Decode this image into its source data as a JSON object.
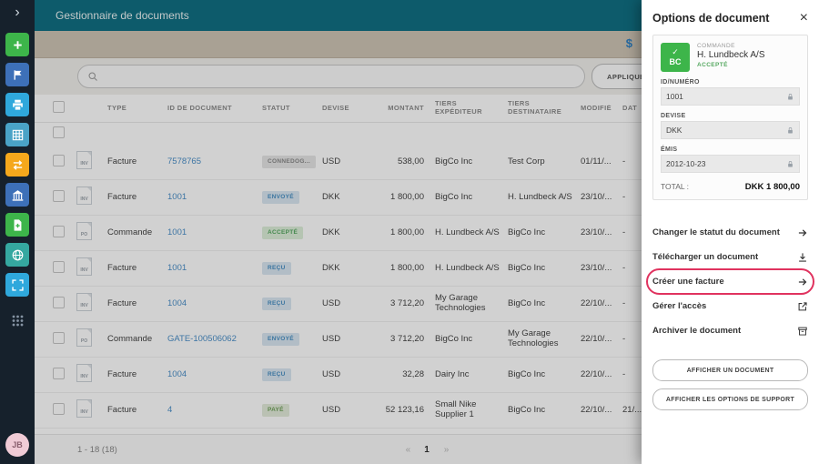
{
  "colors": {
    "header_teal": "#117083",
    "link_blue": "#4b8fc8",
    "accent_green": "#3db54a",
    "highlight_red": "#e0335f",
    "dollar_blue": "#2f80c4"
  },
  "sidebar": {
    "collapse_glyph": "›",
    "avatar_initials": "JB",
    "items": [
      {
        "id": "create",
        "icon": "plus",
        "color": "#3db54a"
      },
      {
        "id": "flag",
        "icon": "flag",
        "color": "#3d70b8"
      },
      {
        "id": "document-manager",
        "icon": "printer",
        "color": "#2fa8dc",
        "active": true
      },
      {
        "id": "reports",
        "icon": "grid",
        "color": "#4aa3c7"
      },
      {
        "id": "exchange",
        "icon": "swap",
        "color": "#f5a81c"
      },
      {
        "id": "network",
        "icon": "building",
        "color": "#3d70b8"
      },
      {
        "id": "create-document",
        "icon": "doc-plus",
        "color": "#3db54a"
      },
      {
        "id": "globe",
        "icon": "globe",
        "color": "#35a8a0"
      },
      {
        "id": "expand-app",
        "icon": "expand",
        "color": "#2fa8dc"
      },
      {
        "id": "app-launcher",
        "icon": "apps",
        "kind": "apps"
      }
    ]
  },
  "header": {
    "title": "Gestionnaire de documents"
  },
  "toolbar": {
    "dollar_glyph": "$"
  },
  "search": {
    "apply_filter_label": "APPLIQUER UN FILTRE"
  },
  "table": {
    "columns": {
      "type": "TYPE",
      "id": "ID DE DOCUMENT",
      "status": "STATUT",
      "currency": "DEVISE",
      "amount": "MONTANT",
      "sender": "TIERS EXPÉDITEUR",
      "receiver": "TIERS DESTINATAIRE",
      "modified": "MODIFIÉ",
      "due": "DAT"
    },
    "rows": [
      {
        "type_abbr": "INV",
        "type": "Facture",
        "id": "7578765",
        "status": "CONNEDOG...",
        "status_class": "muted",
        "currency": "USD",
        "amount": "538,00",
        "sender": "BigCo Inc",
        "receiver": "Test Corp",
        "modified": "01/11/...",
        "due": "-"
      },
      {
        "type_abbr": "INV",
        "type": "Facture",
        "id": "1001",
        "status": "ENVOYÉ",
        "status_class": "sent",
        "currency": "DKK",
        "amount": "1 800,00",
        "sender": "BigCo Inc",
        "receiver": "H. Lundbeck A/S",
        "modified": "23/10/...",
        "due": "-"
      },
      {
        "type_abbr": "PO",
        "type": "Commande",
        "id": "1001",
        "status": "ACCEPTÉ",
        "status_class": "accepted",
        "currency": "DKK",
        "amount": "1 800,00",
        "sender": "H. Lundbeck A/S",
        "receiver": "BigCo Inc",
        "modified": "23/10/...",
        "due": "-"
      },
      {
        "type_abbr": "INV",
        "type": "Facture",
        "id": "1001",
        "status": "REÇU",
        "status_class": "received",
        "currency": "DKK",
        "amount": "1 800,00",
        "sender": "H. Lundbeck A/S",
        "receiver": "BigCo Inc",
        "modified": "23/10/...",
        "due": "-"
      },
      {
        "type_abbr": "INV",
        "type": "Facture",
        "id": "1004",
        "status": "REÇU",
        "status_class": "received",
        "currency": "USD",
        "amount": "3 712,20",
        "sender": "My Garage Technologies",
        "receiver": "BigCo Inc",
        "modified": "22/10/...",
        "due": "-"
      },
      {
        "type_abbr": "PO",
        "type": "Commande",
        "id": "GATE-100506062",
        "status": "ENVOYÉ",
        "status_class": "sent",
        "currency": "USD",
        "amount": "3 712,20",
        "sender": "BigCo Inc",
        "receiver": "My Garage Technologies",
        "modified": "22/10/...",
        "due": "-"
      },
      {
        "type_abbr": "INV",
        "type": "Facture",
        "id": "1004",
        "status": "REÇU",
        "status_class": "received",
        "currency": "USD",
        "amount": "32,28",
        "sender": "Dairy Inc",
        "receiver": "BigCo Inc",
        "modified": "22/10/...",
        "due": "-"
      },
      {
        "type_abbr": "INV",
        "type": "Facture",
        "id": "4",
        "status": "PAYÉ",
        "status_class": "paid",
        "currency": "USD",
        "amount": "52 123,16",
        "sender": "Small Nike Supplier 1",
        "receiver": "BigCo Inc",
        "modified": "22/10/...",
        "due": "21/..."
      }
    ]
  },
  "footer": {
    "range": "1 - 18 (18)",
    "prev_glyph": "«",
    "page": "1",
    "next_glyph": "»"
  },
  "panel": {
    "title": "Options de document",
    "close_glyph": "×",
    "card": {
      "doc_icon_check": "✓",
      "doc_icon_abbr": "BC",
      "doc_type": "COMMANDE",
      "party": "H. Lundbeck A/S",
      "status": "ACCEPTÉ",
      "fields": [
        {
          "label": "ID/NUMÉRO",
          "value": "1001"
        },
        {
          "label": "DEVISE",
          "value": "DKK"
        },
        {
          "label": "ÉMIS",
          "value": "2012-10-23"
        }
      ],
      "total_label": "TOTAL :",
      "total_value": "DKK 1 800,00"
    },
    "actions": [
      {
        "label": "Changer le statut du document",
        "icon": "arrow-right"
      },
      {
        "label": "Télécharger un document",
        "icon": "download"
      },
      {
        "label": "Créer une facture",
        "icon": "arrow-right",
        "highlighted": true
      },
      {
        "label": "Gérer l'accès",
        "icon": "share"
      },
      {
        "label": "Archiver le document",
        "icon": "archive"
      }
    ],
    "buttons": [
      "AFFICHER UN DOCUMENT",
      "AFFICHER LES OPTIONS DE SUPPORT"
    ]
  }
}
